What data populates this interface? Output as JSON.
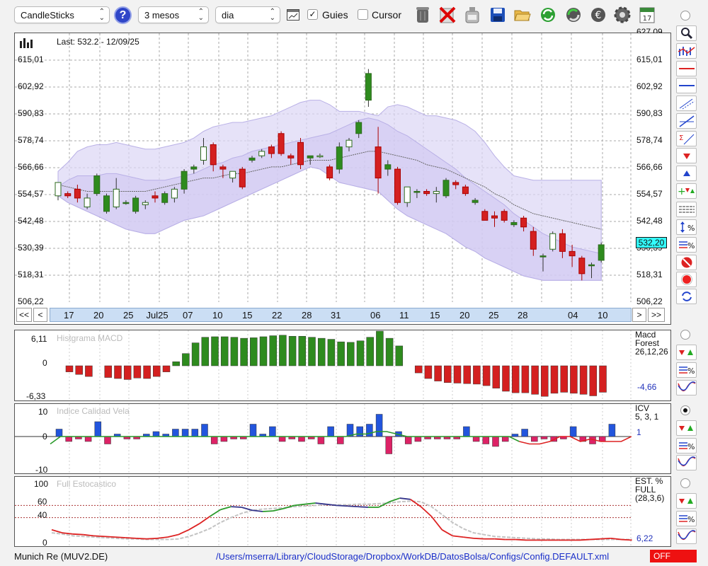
{
  "toolbar": {
    "chart_type": "CandleSticks",
    "period": "3 mesos",
    "interval": "dia",
    "guides_label": "Guies",
    "guides_checked": true,
    "cursor_label": "Cursor",
    "cursor_checked": false,
    "icons": [
      "help-icon",
      "chart-window-icon",
      "trash-icon",
      "delete-icon",
      "bottle-icon",
      "save-icon",
      "open-folder-icon",
      "refresh-icon",
      "update-icon",
      "currency-icon",
      "gear-icon",
      "calendar-icon"
    ],
    "calendar_day": "17"
  },
  "main_chart": {
    "last_label": "Last: 532.2 - 12/09/25",
    "y_ticks": [
      "615,01",
      "602,92",
      "590,83",
      "578,74",
      "566,66",
      "554,57",
      "542,48",
      "530,39",
      "518,31",
      "506,22"
    ],
    "top_tick": "627,09",
    "current_price": "532,20",
    "x_labels": [
      "17",
      "20",
      "25",
      "Jul25",
      "07",
      "10",
      "15",
      "22",
      "28",
      "31",
      "06",
      "11",
      "15",
      "20",
      "25",
      "28",
      "04",
      "10"
    ],
    "nav_left": [
      "<<",
      "<"
    ],
    "nav_right": [
      ">",
      ">>"
    ]
  },
  "macd": {
    "title": "Histgrama MACD",
    "y_ticks": [
      "6,11",
      "0",
      "-6,33"
    ],
    "legend": [
      "Macd",
      "Forest",
      "26,12,26"
    ],
    "value": "-4,66"
  },
  "icv": {
    "title": "Indice Calidad Vela",
    "y_ticks": [
      "10",
      "0",
      "-10"
    ],
    "legend": [
      "ICV",
      "5, 3, 1"
    ],
    "value": "1"
  },
  "stoch": {
    "title": "Full Estocastico",
    "y_ticks": [
      "100",
      "60",
      "40",
      "0"
    ],
    "legend": [
      "EST. %",
      "FULL",
      "(28,3,6)"
    ],
    "value": "6,22"
  },
  "status": {
    "symbol": "Munich Re (MUV2.DE)",
    "path": "/Users/mserra/Library/CloudStorage/Dropbox/WorkDB/DatosBolsa/Configs/Config.DEFAULT.xml",
    "state": "OFF"
  },
  "colors": {
    "up": "#2e8b1e",
    "down": "#d42020",
    "band": "#dcd6f5",
    "macd_pos": "#2e8b1e",
    "macd_neg": "#d42020",
    "icv_pos": "#2255dd",
    "icv_neg": "#dd2266"
  },
  "chart_data": {
    "type": "candlestick",
    "ylim": [
      506.22,
      627.09
    ],
    "candles": [
      {
        "o": 554,
        "h": 560,
        "l": 552,
        "c": 560
      },
      {
        "o": 555,
        "h": 556,
        "l": 553,
        "c": 554
      },
      {
        "o": 557,
        "h": 559,
        "l": 551,
        "c": 553
      },
      {
        "o": 549,
        "h": 555,
        "l": 548,
        "c": 553
      },
      {
        "o": 555,
        "h": 564,
        "l": 554,
        "c": 563
      },
      {
        "o": 547,
        "h": 555,
        "l": 546,
        "c": 554
      },
      {
        "o": 549,
        "h": 562,
        "l": 548,
        "c": 557
      },
      {
        "o": 551,
        "h": 552,
        "l": 550,
        "c": 551
      },
      {
        "o": 547,
        "h": 554,
        "l": 546,
        "c": 553
      },
      {
        "o": 550,
        "h": 552,
        "l": 548,
        "c": 551
      },
      {
        "o": 554,
        "h": 556,
        "l": 551,
        "c": 553
      },
      {
        "o": 551,
        "h": 556,
        "l": 550,
        "c": 555
      },
      {
        "o": 553,
        "h": 558,
        "l": 551,
        "c": 557
      },
      {
        "o": 557,
        "h": 566,
        "l": 555,
        "c": 565
      },
      {
        "o": 566,
        "h": 568,
        "l": 564,
        "c": 567
      },
      {
        "o": 570,
        "h": 580,
        "l": 568,
        "c": 576
      },
      {
        "o": 577,
        "h": 578,
        "l": 565,
        "c": 568
      },
      {
        "o": 567,
        "h": 568,
        "l": 562,
        "c": 566
      },
      {
        "o": 562,
        "h": 565,
        "l": 560,
        "c": 565
      },
      {
        "o": 566,
        "h": 567,
        "l": 557,
        "c": 558
      },
      {
        "o": 570,
        "h": 572,
        "l": 569,
        "c": 571
      },
      {
        "o": 572,
        "h": 575,
        "l": 571,
        "c": 574
      },
      {
        "o": 576,
        "h": 577,
        "l": 571,
        "c": 573
      },
      {
        "o": 582,
        "h": 583,
        "l": 572,
        "c": 573
      },
      {
        "o": 572,
        "h": 573,
        "l": 568,
        "c": 571
      },
      {
        "o": 578,
        "h": 580,
        "l": 566,
        "c": 568
      },
      {
        "o": 571,
        "h": 572,
        "l": 568,
        "c": 572
      },
      {
        "o": 572,
        "h": 573,
        "l": 571,
        "c": 572
      },
      {
        "o": 567,
        "h": 568,
        "l": 561,
        "c": 562
      },
      {
        "o": 566,
        "h": 578,
        "l": 564,
        "c": 576
      },
      {
        "o": 576,
        "h": 580,
        "l": 574,
        "c": 579
      },
      {
        "o": 582,
        "h": 588,
        "l": 580,
        "c": 587
      },
      {
        "o": 597,
        "h": 611,
        "l": 594,
        "c": 609
      },
      {
        "o": 576,
        "h": 585,
        "l": 555,
        "c": 562
      },
      {
        "o": 566,
        "h": 570,
        "l": 563,
        "c": 568
      },
      {
        "o": 566,
        "h": 567,
        "l": 550,
        "c": 551
      },
      {
        "o": 551,
        "h": 558,
        "l": 549,
        "c": 558
      },
      {
        "o": 556,
        "h": 557,
        "l": 553,
        "c": 556
      },
      {
        "o": 556,
        "h": 557,
        "l": 554,
        "c": 555
      },
      {
        "o": 555,
        "h": 558,
        "l": 551,
        "c": 556
      },
      {
        "o": 554,
        "h": 562,
        "l": 553,
        "c": 561
      },
      {
        "o": 560,
        "h": 561,
        "l": 557,
        "c": 559
      },
      {
        "o": 558,
        "h": 559,
        "l": 554,
        "c": 555
      },
      {
        "o": 551,
        "h": 553,
        "l": 550,
        "c": 552
      },
      {
        "o": 547,
        "h": 548,
        "l": 543,
        "c": 543
      },
      {
        "o": 545,
        "h": 547,
        "l": 540,
        "c": 544
      },
      {
        "o": 547,
        "h": 548,
        "l": 542,
        "c": 543
      },
      {
        "o": 541,
        "h": 543,
        "l": 540,
        "c": 542
      },
      {
        "o": 544,
        "h": 545,
        "l": 538,
        "c": 540
      },
      {
        "o": 538,
        "h": 540,
        "l": 527,
        "c": 530
      },
      {
        "o": 527,
        "h": 528,
        "l": 520,
        "c": 527
      },
      {
        "o": 530,
        "h": 538,
        "l": 529,
        "c": 537
      },
      {
        "o": 537,
        "h": 539,
        "l": 526,
        "c": 529
      },
      {
        "o": 529,
        "h": 532,
        "l": 522,
        "c": 527
      },
      {
        "o": 526,
        "h": 527,
        "l": 516,
        "c": 519
      },
      {
        "o": 523,
        "h": 524,
        "l": 517,
        "c": 523
      },
      {
        "o": 525,
        "h": 533,
        "l": 524,
        "c": 532
      }
    ],
    "upper_band": [
      565,
      569,
      574,
      576,
      577,
      577,
      578,
      577,
      576,
      575,
      575,
      576,
      577,
      578,
      580,
      583,
      585,
      586,
      587,
      587,
      588,
      589,
      590,
      592,
      594,
      596,
      597,
      597,
      595,
      592,
      592,
      592,
      591,
      590,
      594,
      595,
      594,
      592,
      590,
      590,
      589,
      588,
      586,
      583,
      578,
      572,
      567,
      563,
      562,
      561,
      561,
      561,
      561,
      561,
      561,
      561,
      561
    ],
    "lower_band": [
      554,
      551,
      549,
      547,
      545,
      543,
      541,
      539,
      538,
      537,
      537,
      539,
      541,
      543,
      544,
      545,
      547,
      549,
      551,
      553,
      555,
      557,
      559,
      561,
      563,
      565,
      567,
      566,
      563,
      560,
      559,
      558,
      557,
      556,
      552,
      548,
      545,
      543,
      541,
      539,
      537,
      534,
      531,
      529,
      526,
      524,
      522,
      520,
      518,
      517,
      516,
      516,
      516,
      516,
      516,
      516,
      516
    ],
    "upper_band2": [
      558,
      561,
      563,
      563,
      563,
      564,
      564,
      563,
      562,
      561,
      561,
      561,
      562,
      563,
      564,
      566,
      568,
      569,
      571,
      572,
      574,
      575,
      576,
      577,
      578,
      579,
      580,
      581,
      582,
      584,
      586,
      588,
      589,
      588,
      586,
      583,
      581,
      578,
      575,
      572,
      569,
      566,
      562,
      559,
      556,
      553,
      550,
      546,
      543,
      540,
      537,
      535,
      533,
      531,
      530,
      529,
      528
    ],
    "sma": [
      559,
      558,
      557,
      556,
      556,
      556,
      556,
      556,
      556,
      556,
      557,
      558,
      559,
      560,
      561,
      562,
      562,
      563,
      564,
      564,
      565,
      566,
      567,
      567,
      568,
      569,
      570,
      570,
      570,
      571,
      572,
      573,
      574,
      574,
      573,
      572,
      571,
      570,
      568,
      567,
      566,
      564,
      562,
      560,
      558,
      555,
      553,
      550,
      548,
      546,
      545,
      544,
      543,
      542,
      541,
      540,
      539
    ]
  },
  "macd_data": [
    -1.2,
    -1.7,
    -2.1,
    0,
    -2.3,
    -2.5,
    -2.7,
    -2.4,
    -2.5,
    -2.1,
    -1.2,
    0.8,
    2.4,
    4.5,
    5.6,
    5.7,
    5.7,
    5.6,
    5.4,
    5.5,
    5.7,
    5.9,
    6.0,
    5.8,
    5.8,
    5.6,
    5.4,
    5.2,
    4.7,
    4.6,
    4.9,
    5.6,
    6.8,
    5.4,
    3.9,
    0,
    -1.4,
    -2.5,
    -3.0,
    -3.3,
    -3.4,
    -3.5,
    -3.6,
    -3.9,
    -4.4,
    -5.0,
    -5.3,
    -5.3,
    -5.6,
    -6.0,
    -5.4,
    -5.2,
    -5.4,
    -5.6,
    -5.9,
    -5.2
  ],
  "icv_data": [
    3,
    -2,
    -1,
    -2,
    6,
    -3,
    1,
    -1,
    -1,
    1,
    2,
    1,
    3,
    3,
    3,
    5,
    -3,
    -2,
    -1,
    -1,
    5,
    1,
    4,
    -2,
    -1,
    -2,
    -1,
    -3,
    4,
    -3,
    5,
    4,
    5,
    9,
    -7,
    2,
    -3,
    -2,
    -1,
    -1,
    -1,
    -1,
    4,
    -2,
    -3,
    -4,
    -2,
    1,
    3,
    -2,
    -1,
    -2,
    -1,
    4,
    -2,
    -3,
    -2,
    5
  ],
  "icv_line": [
    -3,
    0,
    0,
    0,
    0,
    0,
    0,
    0,
    0,
    0,
    0,
    0,
    0,
    0,
    0,
    0,
    0,
    0,
    0,
    0,
    0,
    0,
    0,
    0,
    0,
    0,
    0,
    0,
    0,
    0,
    1,
    1,
    2,
    2,
    1,
    0,
    0,
    0,
    0,
    0,
    0,
    0,
    0,
    0,
    0,
    0,
    -2,
    -3,
    -3,
    -2,
    0,
    0,
    -2,
    -1,
    -2,
    -2,
    -2,
    0
  ],
  "stoch_k": [
    20,
    15,
    13,
    12,
    10,
    9,
    8,
    7,
    6,
    5,
    6,
    8,
    12,
    20,
    30,
    42,
    53,
    58,
    57,
    52,
    50,
    51,
    55,
    60,
    62,
    64,
    62,
    60,
    59,
    58,
    57,
    57,
    66,
    72,
    70,
    58,
    42,
    20,
    10,
    8,
    6,
    5,
    5,
    4,
    4,
    3,
    3,
    3,
    3,
    3,
    3,
    4,
    5,
    6,
    4,
    3
  ],
  "stoch_d": [
    15,
    13,
    10,
    9,
    8,
    7,
    6,
    5,
    5,
    4,
    4,
    4,
    5,
    9,
    15,
    22,
    32,
    40,
    47,
    52,
    54,
    55,
    56,
    58,
    59,
    60,
    61,
    61,
    61,
    62,
    62,
    63,
    64,
    66,
    67,
    66,
    58,
    45,
    32,
    22,
    15,
    12,
    9,
    8,
    7,
    6,
    5,
    5,
    4,
    4,
    4,
    4,
    4,
    4,
    4,
    4
  ]
}
